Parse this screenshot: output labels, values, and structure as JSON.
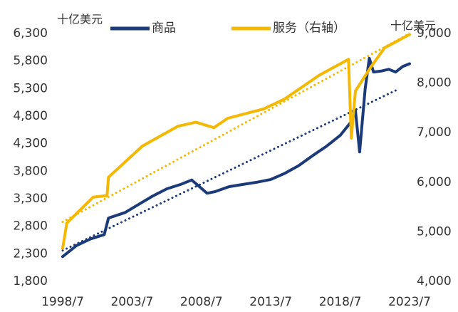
{
  "chart_data": {
    "type": "line",
    "ylabel": "十亿美元",
    "y2label": "十亿美元",
    "xlim": [
      1998.5,
      2023.5
    ],
    "xticks": [
      {
        "value": 1998.5,
        "label": "1998/7"
      },
      {
        "value": 2003.5,
        "label": "2003/7"
      },
      {
        "value": 2008.5,
        "label": "2008/7"
      },
      {
        "value": 2013.5,
        "label": "2013/7"
      },
      {
        "value": 2018.5,
        "label": "2018/7"
      },
      {
        "value": 2023.5,
        "label": "2023/7"
      }
    ],
    "ylim": [
      1800,
      6300
    ],
    "yticks": [
      {
        "value": 1800,
        "label": "1,800"
      },
      {
        "value": 2300,
        "label": "2,300"
      },
      {
        "value": 2800,
        "label": "2,800"
      },
      {
        "value": 3300,
        "label": "3,300"
      },
      {
        "value": 3800,
        "label": "3,800"
      },
      {
        "value": 4300,
        "label": "4,300"
      },
      {
        "value": 4800,
        "label": "4,800"
      },
      {
        "value": 5300,
        "label": "5,300"
      },
      {
        "value": 5800,
        "label": "5,800"
      },
      {
        "value": 6300,
        "label": "6,300"
      }
    ],
    "y2lim": [
      4000,
      9000
    ],
    "y2ticks": [
      {
        "value": 4000,
        "label": "4,000"
      },
      {
        "value": 5000,
        "label": "5,000"
      },
      {
        "value": 6000,
        "label": "6,000"
      },
      {
        "value": 7000,
        "label": "7,000"
      },
      {
        "value": 8000,
        "label": "8,000"
      },
      {
        "value": 9000,
        "label": "9,000"
      }
    ],
    "series": [
      {
        "name": "商品",
        "color": "#1b3a7a",
        "axis": "y",
        "x": [
          1998.5,
          1999.5,
          2000.5,
          2001.5,
          2001.8,
          2003,
          2004,
          2005,
          2006,
          2007,
          2007.8,
          2008.9,
          2009.5,
          2010.5,
          2011.5,
          2012.5,
          2013.5,
          2014.5,
          2015.5,
          2016.5,
          2017.5,
          2018.5,
          2019.3,
          2019.6,
          2019.9,
          2020.3,
          2020.6,
          2020.9,
          2021.5,
          2022,
          2022.5,
          2023,
          2023.5
        ],
        "values": [
          2250,
          2450,
          2570,
          2650,
          2950,
          3050,
          3200,
          3350,
          3480,
          3560,
          3640,
          3400,
          3430,
          3520,
          3560,
          3600,
          3650,
          3760,
          3900,
          4080,
          4250,
          4450,
          4700,
          4900,
          4150,
          5300,
          5850,
          5600,
          5620,
          5650,
          5600,
          5700,
          5750
        ]
      },
      {
        "name": "服务（右轴）",
        "color": "#f5b800",
        "axis": "y2",
        "x": [
          1998.5,
          1998.8,
          2000.7,
          2001.7,
          2001.8,
          2004.25,
          2006.8,
          2008.1,
          2009.4,
          2010.4,
          2013,
          2014.5,
          2017,
          2019.1,
          2019.3,
          2019.6,
          2020.7,
          2021.7,
          2023.5
        ],
        "values": [
          4670,
          5175,
          5700,
          5730,
          6100,
          6730,
          7130,
          7210,
          7100,
          7290,
          7480,
          7680,
          8160,
          8480,
          6890,
          7840,
          8320,
          8710,
          8980
        ]
      },
      {
        "color": "#1b3a7a",
        "axis": "y",
        "dash": "dotted",
        "x": [
          1998.5,
          2022.7
        ],
        "values": [
          2360,
          5290
        ]
      },
      {
        "color": "#f5b800",
        "axis": "y2",
        "dash": "dotted",
        "x": [
          1998.5,
          2023.5
        ],
        "values": [
          5200,
          9000
        ]
      }
    ]
  }
}
